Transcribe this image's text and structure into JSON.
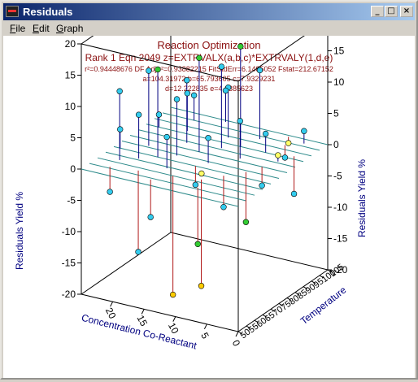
{
  "window": {
    "title": "Residuals",
    "buttons": {
      "minimize": "_",
      "maximize": "□",
      "close": "×"
    }
  },
  "menu": {
    "items": [
      "File",
      "Edit",
      "Graph"
    ]
  },
  "chart_data": {
    "type": "scatter",
    "title": "Reaction Optimization",
    "subtitle": "Rank 1  Eqn 2049  z=EXTRVALX(a,b,c)*EXTRVALY(1,d,e)",
    "stats_line": "r²=0.94448676   DF Adj r²=0.93882215   FitStdErr=6.1485052   Fstat=212.67152",
    "params_line1": "a=104.31972  b=65.793605  c=7.9329231",
    "params_line2": "d=12.222835  e=4.6385623",
    "zlabel_left": "Residuals Yield %",
    "zlabel_right": "Residuals Yield %",
    "xlabel": "Concentration Co-Reactant",
    "ylabel": "Temperature",
    "z_ticks": [
      "20",
      "15",
      "10",
      "5",
      "0",
      "-5",
      "-10",
      "-15",
      "-20"
    ],
    "x_ticks": [
      "20",
      "15",
      "10",
      "5",
      "0"
    ],
    "y_ticks": [
      "50",
      "55",
      "60",
      "65",
      "70",
      "75",
      "80",
      "85",
      "90",
      "95",
      "100",
      "105"
    ],
    "zlim": [
      -20,
      20
    ],
    "xlim": [
      0,
      25
    ],
    "ylim": [
      50,
      105
    ],
    "colors": {
      "axis": "#000080",
      "title": "#8b1010",
      "grid": "#2e8b8b",
      "drop_line": "#b01818"
    },
    "points": [
      {
        "x": 22,
        "y": 62,
        "z": 11
      },
      {
        "x": 20,
        "y": 66,
        "z": 7
      },
      {
        "x": 18,
        "y": 70,
        "z": 14
      },
      {
        "x": 16,
        "y": 74,
        "z": 9
      },
      {
        "x": 14,
        "y": 80,
        "z": 15
      },
      {
        "x": 12,
        "y": 86,
        "z": 13
      },
      {
        "x": 10,
        "y": 90,
        "z": 16
      },
      {
        "x": 21,
        "y": 76,
        "z": 12
      },
      {
        "x": 17,
        "y": 84,
        "z": 10
      },
      {
        "x": 13,
        "y": 94,
        "z": 8
      },
      {
        "x": 9,
        "y": 98,
        "z": 11
      },
      {
        "x": 19,
        "y": 92,
        "z": 6
      },
      {
        "x": 24,
        "y": 70,
        "z": 3
      },
      {
        "x": 15,
        "y": 64,
        "z": 5
      },
      {
        "x": 11,
        "y": 74,
        "z": 4
      },
      {
        "x": 8,
        "y": 82,
        "z": 6
      },
      {
        "x": 6,
        "y": 90,
        "z": 3
      },
      {
        "x": 23,
        "y": 90,
        "z": 2
      },
      {
        "x": 20,
        "y": 100,
        "z": 4
      },
      {
        "x": 16,
        "y": 104,
        "z": 5
      },
      {
        "x": 22,
        "y": 56,
        "z": -4
      },
      {
        "x": 18,
        "y": 58,
        "z": -13
      },
      {
        "x": 13,
        "y": 60,
        "z": -19
      },
      {
        "x": 9,
        "y": 62,
        "z": -17
      },
      {
        "x": 7,
        "y": 68,
        "z": -5
      },
      {
        "x": 5,
        "y": 74,
        "z": -8
      },
      {
        "x": 4,
        "y": 80,
        "z": -3
      },
      {
        "x": 3,
        "y": 86,
        "z": 1
      },
      {
        "x": 2,
        "y": 92,
        "z": -6
      },
      {
        "x": 5,
        "y": 98,
        "z": -2
      },
      {
        "x": 10,
        "y": 66,
        "z": 0
      },
      {
        "x": 12,
        "y": 70,
        "z": -3
      },
      {
        "x": 8,
        "y": 56,
        "z": -9
      },
      {
        "x": 15,
        "y": 54,
        "z": -6
      },
      {
        "x": 3,
        "y": 102,
        "z": 2
      },
      {
        "x": 6,
        "y": 104,
        "z": -1
      }
    ]
  }
}
